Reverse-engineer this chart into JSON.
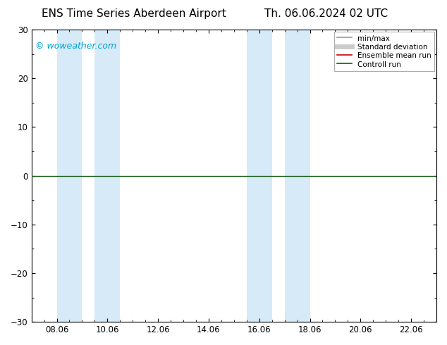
{
  "title_left": "ENS Time Series Aberdeen Airport",
  "title_right": "Th. 06.06.2024 02 UTC",
  "watermark": "© woweather.com",
  "ylim": [
    -30,
    30
  ],
  "yticks": [
    -30,
    -20,
    -10,
    0,
    10,
    20,
    30
  ],
  "xlabel_dates": [
    "08.06",
    "10.06",
    "12.06",
    "14.06",
    "16.06",
    "18.06",
    "20.06",
    "22.06"
  ],
  "xmin": 0.0,
  "xmax": 16.0,
  "shade_bands": [
    {
      "xstart": 1.0,
      "xend": 2.0
    },
    {
      "xstart": 2.5,
      "xend": 3.5
    },
    {
      "xstart": 8.5,
      "xend": 9.5
    },
    {
      "xstart": 10.0,
      "xend": 11.0
    }
  ],
  "shade_color": "#d6eaf8",
  "background_color": "#ffffff",
  "zero_line_color": "#1a5c1a",
  "legend_items": [
    {
      "label": "min/max",
      "color": "#999999",
      "lw": 1.2,
      "style": "solid"
    },
    {
      "label": "Standard deviation",
      "color": "#cccccc",
      "lw": 5,
      "style": "solid"
    },
    {
      "label": "Ensemble mean run",
      "color": "#cc0000",
      "lw": 1.2,
      "style": "solid"
    },
    {
      "label": "Controll run",
      "color": "#006600",
      "lw": 1.2,
      "style": "solid"
    }
  ],
  "title_fontsize": 11,
  "tick_fontsize": 8.5,
  "watermark_fontsize": 9,
  "watermark_color": "#009fd4"
}
